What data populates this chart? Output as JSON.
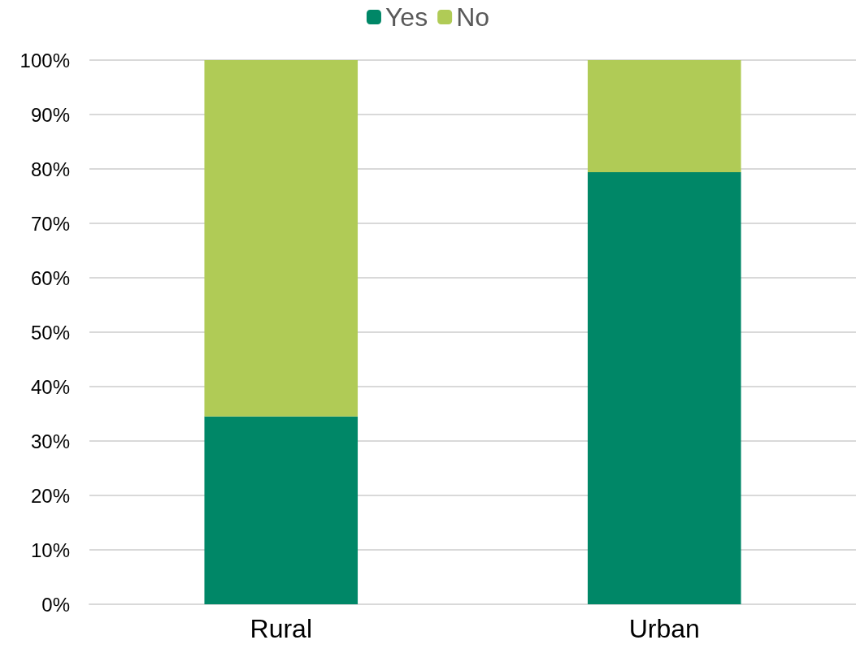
{
  "chart_data": {
    "type": "bar",
    "stacked": true,
    "categories": [
      "Rural",
      "Urban"
    ],
    "series": [
      {
        "name": "Yes",
        "color": "#008767",
        "values": [
          34.5,
          79.4
        ]
      },
      {
        "name": "No",
        "color": "#b0cb56",
        "values": [
          65.5,
          20.6
        ]
      }
    ],
    "ylim": [
      0,
      100
    ],
    "yticks": [
      {
        "value": 0,
        "label": "0%"
      },
      {
        "value": 10,
        "label": "10%"
      },
      {
        "value": 20,
        "label": "20%"
      },
      {
        "value": 30,
        "label": "30%"
      },
      {
        "value": 40,
        "label": "40%"
      },
      {
        "value": 50,
        "label": "50%"
      },
      {
        "value": 60,
        "label": "60%"
      },
      {
        "value": 70,
        "label": "70%"
      },
      {
        "value": 80,
        "label": "80%"
      },
      {
        "value": 90,
        "label": "90%"
      },
      {
        "value": 100,
        "label": "100%"
      }
    ],
    "grid": "y",
    "legend": "top"
  }
}
